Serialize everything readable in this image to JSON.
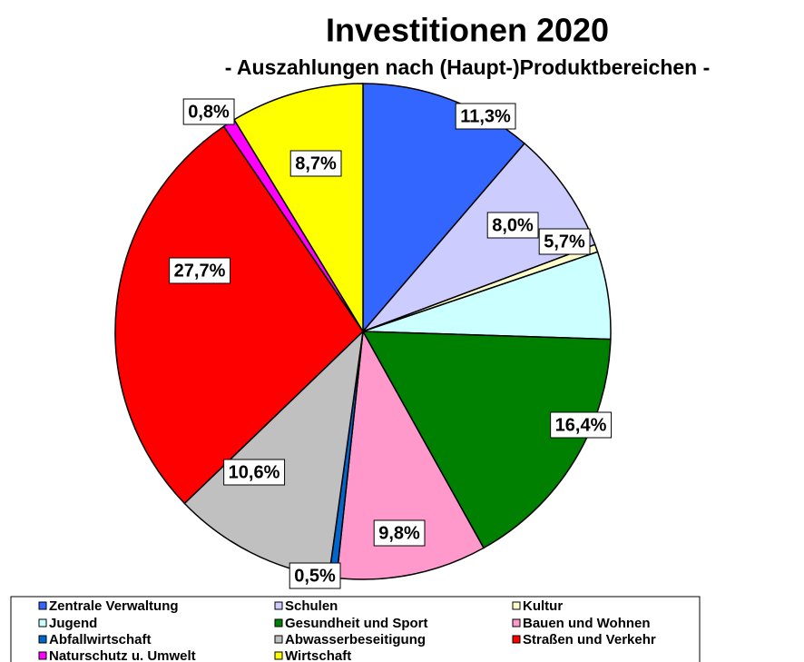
{
  "chart_data": {
    "type": "pie",
    "title": "Investitionen 2020",
    "subtitle": "- Auszahlungen nach (Haupt-)Produktbereichen -",
    "categories": [
      "Zentrale Verwaltung",
      "Schulen",
      "Kultur",
      "Jugend",
      "Gesundheit und Sport",
      "Bauen und Wohnen",
      "Abfallwirtschaft",
      "Abwasserbeseitigung",
      "Straßen und Verkehr",
      "Naturschutz u. Umwelt",
      "Wirtschaft"
    ],
    "values": [
      11.3,
      8.0,
      0.5,
      5.7,
      16.4,
      9.8,
      0.5,
      10.6,
      27.7,
      0.8,
      8.7
    ],
    "value_labels": [
      "11,3%",
      "8,0%",
      null,
      "5,7%",
      "16,4%",
      "9,8%",
      "0,5%",
      "10,6%",
      "27,7%",
      "0,8%",
      "8,7%"
    ],
    "colors": [
      "#3366ff",
      "#ccccff",
      "#ffffcc",
      "#ccffff",
      "#008000",
      "#ff99cc",
      "#0066cc",
      "#c0c0c0",
      "#ff0000",
      "#ff00ff",
      "#ffff00"
    ],
    "legend": "bottom"
  }
}
